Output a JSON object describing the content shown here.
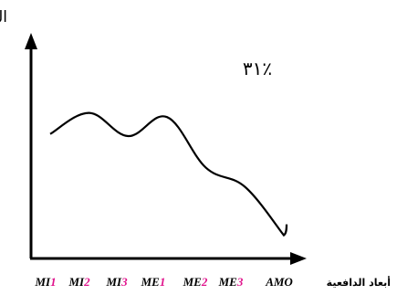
{
  "chart_data": {
    "type": "line",
    "ylabel": "التقدير",
    "xlabel": "أبعاد الدافعية",
    "annotation": "٪٣١",
    "grid": false,
    "legend": "none",
    "categories": [
      {
        "prefix": "MI",
        "suffix": "1"
      },
      {
        "prefix": "MI",
        "suffix": "2"
      },
      {
        "prefix": "MI",
        "suffix": "3"
      },
      {
        "prefix": "ME",
        "suffix": "1"
      },
      {
        "prefix": "ME",
        "suffix": "2"
      },
      {
        "prefix": "ME",
        "suffix": "3"
      },
      {
        "prefix": "AMO",
        "suffix": ""
      }
    ],
    "series": [
      {
        "values": [
          0.59,
          0.69,
          0.58,
          0.67,
          0.43,
          0.34,
          0.11
        ]
      }
    ],
    "ylim": [
      0,
      1
    ],
    "colors": {
      "suffix": "#e0138c",
      "text": "#000000",
      "line": "#000000"
    }
  }
}
